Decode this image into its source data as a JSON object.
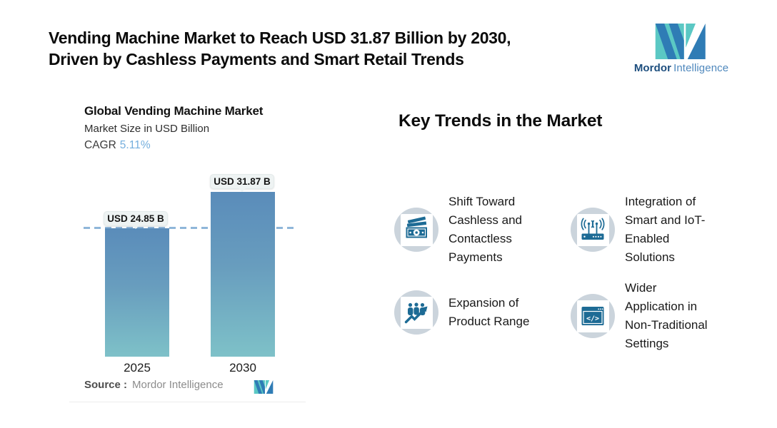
{
  "header": {
    "title_lines": [
      "Vending Machine Market to Reach USD 31.87 Billion by 2030,",
      "Driven by Cashless Payments and Smart Retail Trends"
    ],
    "brand": {
      "name_bold": "Mordor",
      "name_light": "Intelligence",
      "teal": "#5bc8c4",
      "blue": "#2f7cb5"
    }
  },
  "chart_panel": {
    "title": "Global Vending Machine Market",
    "subtitle": "Market Size in USD Billion",
    "cagr_label": "CAGR",
    "cagr_value": "5.11%",
    "source_label": "Source :",
    "source_value": "Mordor Intelligence"
  },
  "chart_data": {
    "type": "bar",
    "title": "Global Vending Machine Market",
    "ylabel": "Market Size in USD Billion",
    "cagr_pct": 5.11,
    "categories": [
      "2025",
      "2030"
    ],
    "values": [
      24.85,
      31.87
    ],
    "value_labels": [
      "USD 24.85 B",
      "USD 31.87 B"
    ],
    "reference_line_value": 24.85,
    "ylim": [
      0,
      35
    ],
    "legend": false,
    "grid": false,
    "colors": {
      "bar_top": "#5a8cba",
      "bar_bottom": "#7ec1c8",
      "dash_line": "#8fb6d9",
      "cagr_accent": "#74aedd"
    }
  },
  "trends": {
    "heading": "Key Trends in the Market",
    "items": [
      {
        "icon": "cash-banknotes-icon",
        "label": "Shift Toward Cashless and Contactless Payments"
      },
      {
        "icon": "iot-router-icon",
        "label": "Integration of Smart and IoT-Enabled Solutions"
      },
      {
        "icon": "growth-people-chart-icon",
        "label": "Expansion of Product Range"
      },
      {
        "icon": "code-window-icon",
        "label": "Wider Application in Non-Traditional Settings"
      }
    ]
  }
}
